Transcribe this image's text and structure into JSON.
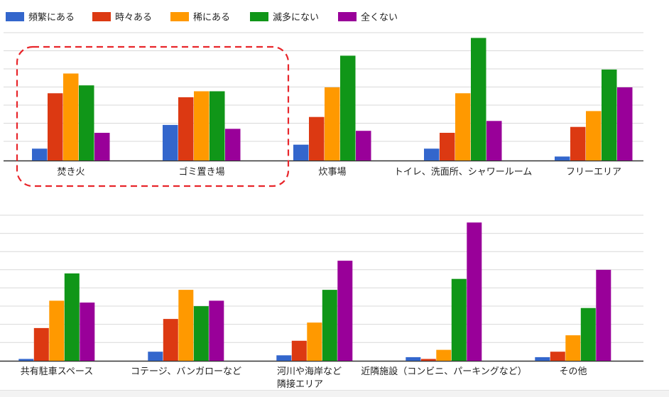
{
  "colors": {
    "series": [
      "#3366cc",
      "#dc3912",
      "#ff9900",
      "#109618",
      "#990099"
    ],
    "grid": "#d9d9d9",
    "axis": "#333333",
    "highlight": "#e8262b"
  },
  "chart_data": [
    {
      "type": "bar",
      "legend_position": "top",
      "grid": true,
      "series": [
        {
          "name": "頻繁にある",
          "values": [
            6,
            18,
            8,
            6,
            2
          ]
        },
        {
          "name": "時々ある",
          "values": [
            34,
            32,
            22,
            14,
            17
          ]
        },
        {
          "name": "稀にある",
          "values": [
            44,
            35,
            37,
            34,
            25
          ]
        },
        {
          "name": "滅多にない",
          "values": [
            38,
            35,
            53,
            62,
            46
          ]
        },
        {
          "name": "全くない",
          "values": [
            14,
            16,
            15,
            20,
            37
          ]
        }
      ],
      "categories": [
        [
          "焚き火"
        ],
        [
          "ゴミ置き場"
        ],
        [
          "炊事場"
        ],
        [
          "トイレ、洗面所、シャワールーム"
        ],
        [
          "フリーエリア"
        ]
      ],
      "ylim": [
        0,
        65
      ]
    },
    {
      "type": "bar",
      "grid": true,
      "series": [
        {
          "name": "頻繁にある",
          "values": [
            1,
            5,
            3,
            2,
            2
          ]
        },
        {
          "name": "時々ある",
          "values": [
            18,
            23,
            11,
            1,
            5
          ]
        },
        {
          "name": "稀にある",
          "values": [
            33,
            39,
            21,
            6,
            14
          ]
        },
        {
          "name": "滅多にない",
          "values": [
            48,
            30,
            39,
            45,
            29
          ]
        },
        {
          "name": "全くない",
          "values": [
            32,
            33,
            55,
            76,
            50
          ]
        }
      ],
      "categories": [
        [
          "共有駐車スペース"
        ],
        [
          "コテージ、バンガローなど"
        ],
        [
          "河川や海岸など",
          "隣接エリア"
        ],
        [
          "近隣施設（コンビニ、パーキングなど）"
        ],
        [
          "その他"
        ]
      ],
      "ylim": [
        0,
        80
      ]
    }
  ]
}
